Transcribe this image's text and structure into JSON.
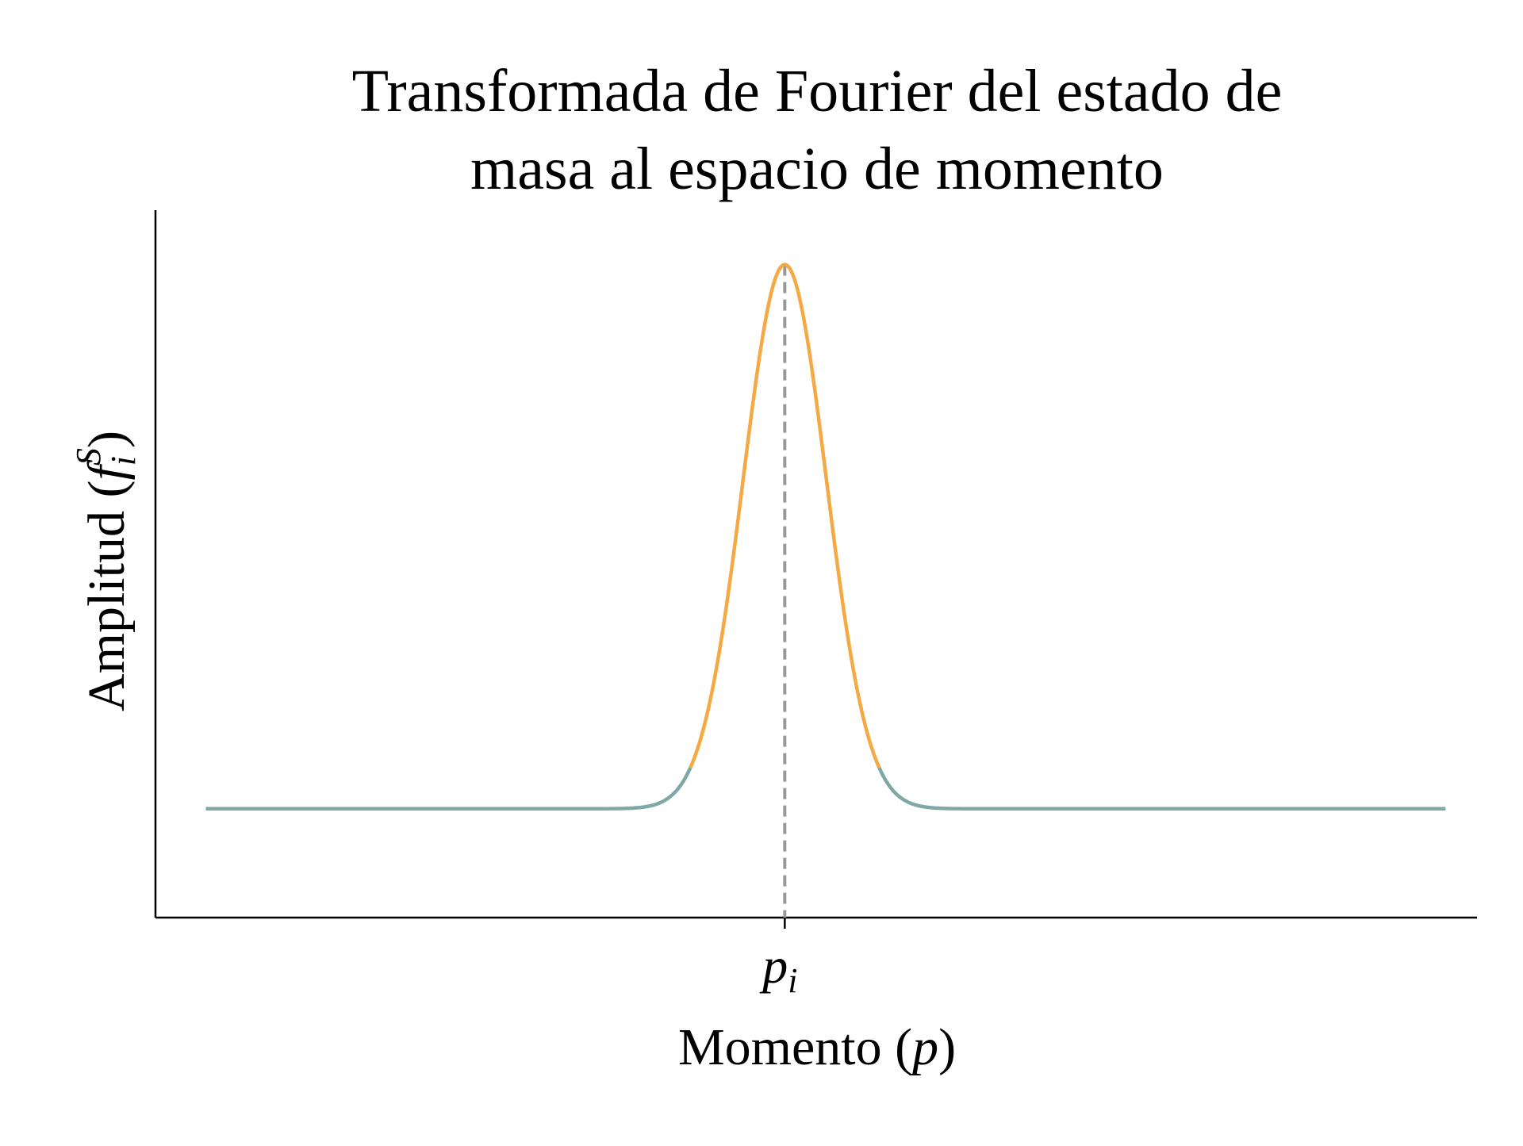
{
  "chart_data": {
    "type": "line",
    "title_line1": "Transformada de Fourier del estado de",
    "title_line2": "masa al espacio de momento",
    "xlabel": {
      "text": "Momento (",
      "math": "p",
      "close": ")"
    },
    "ylabel": {
      "text": "Amplitud (",
      "math": "f",
      "sub": "i",
      "sup": "S",
      "close": ")"
    },
    "x_ticks": [
      {
        "value": 0,
        "math": "p",
        "sub": "i"
      }
    ],
    "xlim": [
      -5,
      5.5
    ],
    "ylim": [
      -0.2,
      1.1
    ],
    "curve": {
      "function": "gaussian",
      "center": 0,
      "sigma": 0.33,
      "amplitude": 1.0,
      "baseline": 0.0,
      "x_range": [
        -4.6,
        5.25
      ]
    },
    "highlight_range": [
      -0.75,
      0.75
    ],
    "reference_line": {
      "x": 0,
      "style": "dashed"
    },
    "colors": {
      "base_curve": "#7fa8a6",
      "highlight_curve": "#f5a944",
      "reference_line": "#999999",
      "axes": "#000000"
    },
    "grid": false,
    "legend": "none"
  }
}
